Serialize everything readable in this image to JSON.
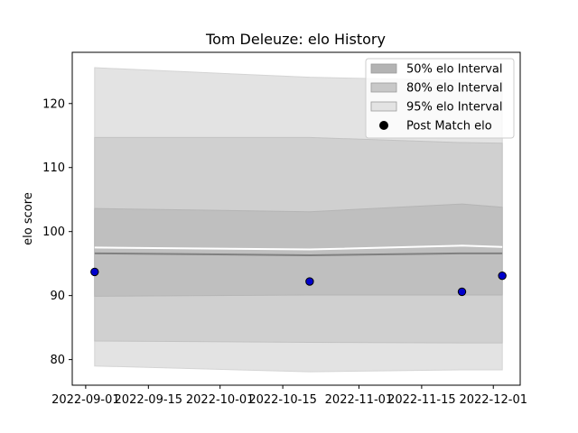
{
  "chart_data": {
    "type": "line",
    "title": "Tom Deleuze: elo History",
    "xlabel": "",
    "ylabel": "elo score",
    "x_type": "date",
    "xlim": [
      "2022-08-29",
      "2022-12-07"
    ],
    "ylim": [
      76,
      128
    ],
    "x_ticks": [
      "2022-09-01",
      "2022-09-15",
      "2022-10-01",
      "2022-10-15",
      "2022-11-01",
      "2022-11-15",
      "2022-12-01"
    ],
    "y_ticks": [
      80,
      90,
      100,
      110,
      120
    ],
    "dates": [
      "2022-09-03",
      "2022-10-21",
      "2022-11-24",
      "2022-12-03"
    ],
    "mean": [
      96.6,
      96.3,
      96.6,
      96.6
    ],
    "separator": [
      97.5,
      97.2,
      97.8,
      97.6
    ],
    "interval_50": {
      "lower": [
        89.9,
        90.1,
        90.1,
        90.1
      ],
      "upper": [
        103.6,
        103.1,
        104.3,
        103.8
      ]
    },
    "interval_80": {
      "lower": [
        82.9,
        82.7,
        82.6,
        82.6
      ],
      "upper": [
        114.7,
        114.7,
        113.9,
        113.8
      ]
    },
    "interval_95": {
      "lower": [
        79.0,
        78.1,
        78.4,
        78.4
      ],
      "upper": [
        125.6,
        124.1,
        123.6,
        123.6
      ]
    },
    "post_match": [
      {
        "date": "2022-09-03",
        "elo": 93.7
      },
      {
        "date": "2022-10-21",
        "elo": 92.2
      },
      {
        "date": "2022-11-24",
        "elo": 90.6
      },
      {
        "date": "2022-12-03",
        "elo": 93.1
      }
    ],
    "legend_position": "top-right",
    "legend": [
      {
        "label": "50% elo Interval",
        "kind": "band",
        "color": "#b3b3b3"
      },
      {
        "label": "80% elo Interval",
        "kind": "band",
        "color": "#c8c8c8"
      },
      {
        "label": "95% elo Interval",
        "kind": "band",
        "color": "#e3e3e3"
      },
      {
        "label": "Post Match elo",
        "kind": "marker",
        "color": "#000000"
      }
    ],
    "colors": {
      "band_95": "#e3e3e3",
      "band_80": "#d0d0d0",
      "band_50": "#bfbfbf",
      "mean_line": "#808080",
      "separator_line": "#ffffff",
      "marker_fill": "#0000cc",
      "marker_edge": "#000000"
    },
    "grid": false
  }
}
